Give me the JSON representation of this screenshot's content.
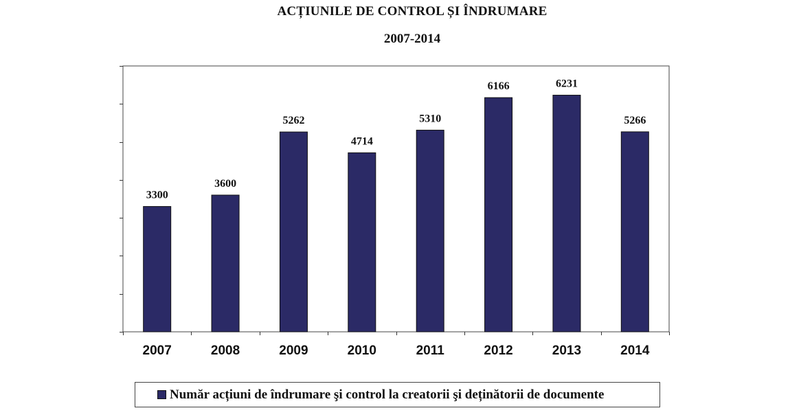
{
  "chart_data": {
    "type": "bar",
    "title": "ACȚIUNILE DE CONTROL ȘI ÎNDRUMARE",
    "subtitle": "2007-2014",
    "categories": [
      "2007",
      "2008",
      "2009",
      "2010",
      "2011",
      "2012",
      "2013",
      "2014"
    ],
    "series": [
      {
        "name": "Număr acțiuni de îndrumare şi control la creatorii şi deținătorii de documente",
        "values": [
          3300,
          3600,
          5262,
          4714,
          5310,
          6166,
          6231,
          5266
        ],
        "data_labels": [
          "3300",
          "3600",
          "5262",
          "4714",
          "5310",
          "6166",
          "6231",
          "5266"
        ],
        "color": "#2b2a66"
      }
    ],
    "ylim": [
      0,
      7000
    ],
    "y_tick_step": 1000,
    "y_tick_labels_shown": false,
    "grid": false,
    "legend_position": "bottom"
  }
}
